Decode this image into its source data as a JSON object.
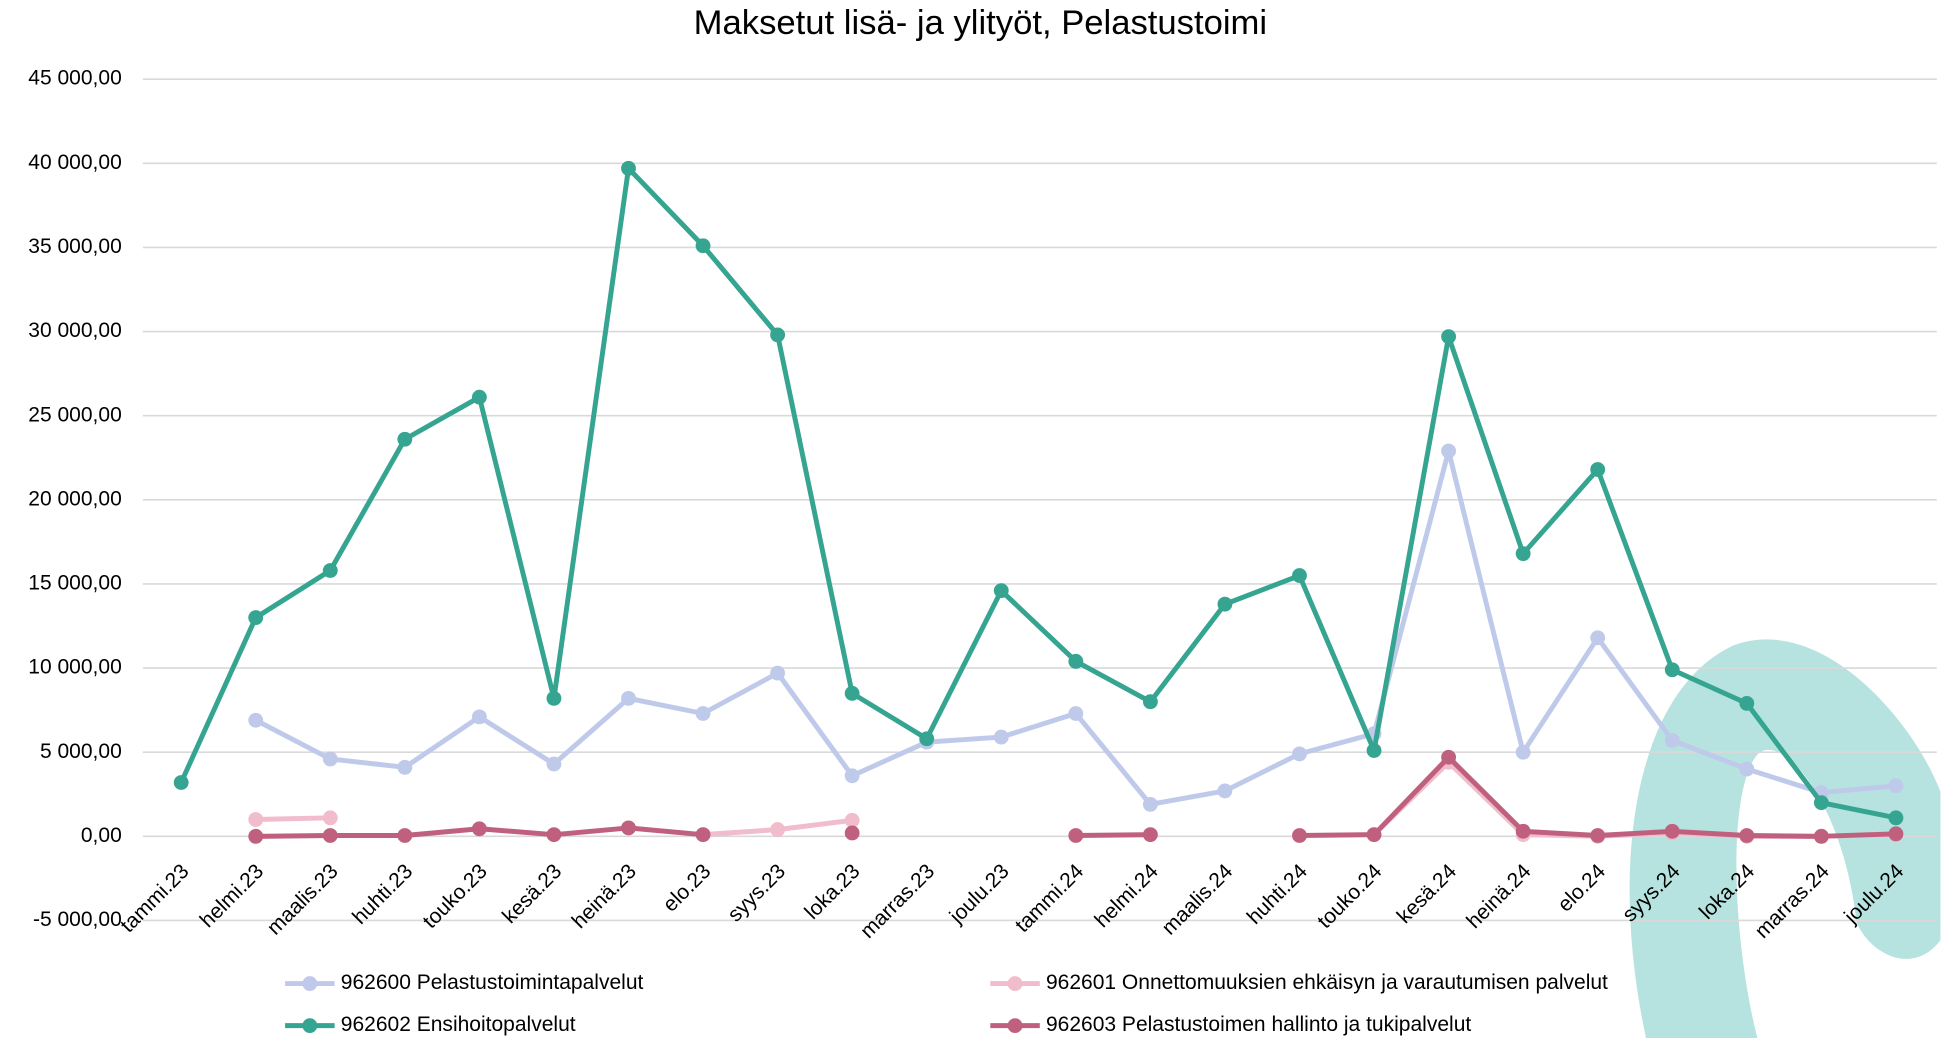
{
  "chart_data": {
    "type": "line",
    "title": "Maksetut lisä- ja ylityöt, Pelastustoimi",
    "categories": [
      "tammi.23",
      "helmi.23",
      "maalis.23",
      "huhti.23",
      "touko.23",
      "kesä.23",
      "heinä.23",
      "elo.23",
      "syys.23",
      "loka.23",
      "marras.23",
      "joulu.23",
      "tammi.24",
      "helmi.24",
      "maalis.24",
      "huhti.24",
      "touko.24",
      "kesä.24",
      "heinä.24",
      "elo.24",
      "syys.24",
      "loka.24",
      "marras.24",
      "joulu.24"
    ],
    "series": [
      {
        "name": "962600 Pelastustoimintapalvelut",
        "color": "#bfcaea",
        "values": [
          null,
          6900,
          4600,
          4100,
          7100,
          4300,
          8200,
          7300,
          9700,
          3600,
          5600,
          5900,
          7300,
          1900,
          2700,
          4900,
          6100,
          22900,
          5000,
          11800,
          5700,
          4000,
          2600,
          3000
        ]
      },
      {
        "name": "962601 Onnettomuuksien ehkäisyn ja varautumisen palvelut",
        "color": "#f1bccb",
        "values": [
          null,
          1000,
          1100,
          null,
          null,
          null,
          null,
          100,
          400,
          950,
          null,
          null,
          null,
          null,
          null,
          null,
          100,
          4400,
          100,
          0,
          200,
          0,
          0,
          100
        ]
      },
      {
        "name": "962602 Ensihoitopalvelut",
        "color": "#35a491",
        "values": [
          3200,
          13000,
          15800,
          23600,
          26100,
          8200,
          39700,
          35100,
          29800,
          8500,
          5800,
          14600,
          10400,
          8000,
          13800,
          15500,
          5100,
          29700,
          16800,
          21800,
          9900,
          7900,
          2000,
          1100
        ]
      },
      {
        "name": "962603 Pelastustoimen hallinto ja tukipalvelut",
        "color": "#c0607f",
        "values": [
          null,
          0,
          50,
          50,
          450,
          100,
          500,
          100,
          null,
          200,
          null,
          null,
          50,
          100,
          null,
          50,
          100,
          4700,
          300,
          50,
          300,
          50,
          0,
          150
        ]
      }
    ],
    "ylim": [
      -5000,
      45000
    ],
    "yticks": [
      {
        "value": -5000,
        "label": "-5 000,00"
      },
      {
        "value": 0,
        "label": "0,00"
      },
      {
        "value": 5000,
        "label": "5 000,00"
      },
      {
        "value": 10000,
        "label": "10 000,00"
      },
      {
        "value": 15000,
        "label": "15 000,00"
      },
      {
        "value": 20000,
        "label": "20 000,00"
      },
      {
        "value": 25000,
        "label": "25 000,00"
      },
      {
        "value": 30000,
        "label": "30 000,00"
      },
      {
        "value": 35000,
        "label": "35 000,00"
      },
      {
        "value": 40000,
        "label": "40 000,00"
      },
      {
        "value": 45000,
        "label": "45 000,00"
      }
    ],
    "grid": true,
    "legend": "bottom"
  }
}
